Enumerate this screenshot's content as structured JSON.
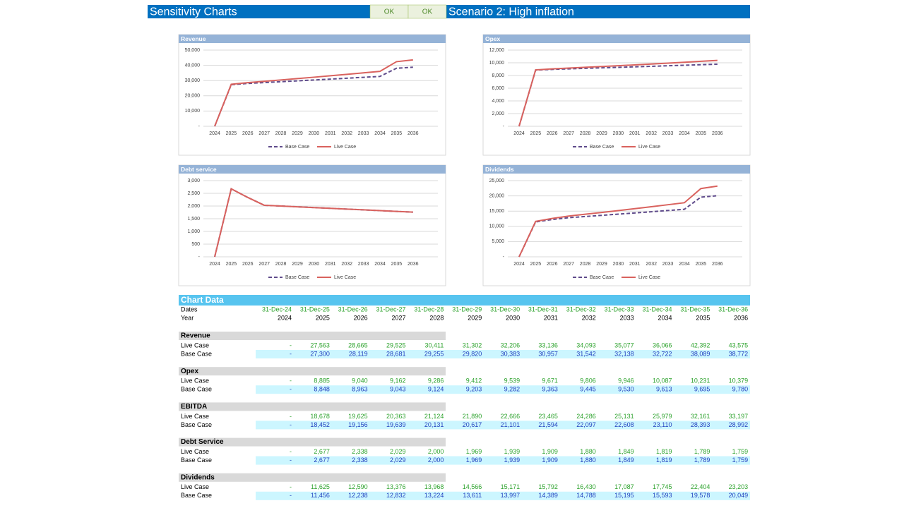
{
  "header": {
    "title": "Sensitivity Charts",
    "buttons": [
      "OK",
      "OK"
    ],
    "scenario": "Scenario 2: High inflation"
  },
  "chart_data": [
    {
      "type": "line",
      "title": "Revenue",
      "categories": [
        "2024",
        "2025",
        "2026",
        "2027",
        "2028",
        "2029",
        "2030",
        "2031",
        "2032",
        "2033",
        "2034",
        "2035",
        "2036"
      ],
      "series": [
        {
          "name": "Base Case",
          "color": "#5f4b8b",
          "style": "dashed",
          "values": [
            0,
            27300,
            28119,
            28681,
            29255,
            29820,
            30383,
            30957,
            31542,
            32138,
            32722,
            38089,
            38772
          ]
        },
        {
          "name": "Live Case",
          "color": "#d9625e",
          "style": "solid",
          "values": [
            0,
            27563,
            28665,
            29525,
            30411,
            31302,
            32206,
            33136,
            34093,
            35077,
            36066,
            42392,
            43575
          ]
        }
      ],
      "ylim": [
        0,
        50000
      ],
      "yticks": [
        {
          "value": 0,
          "label": "-"
        },
        {
          "value": 10000,
          "label": "10,000"
        },
        {
          "value": 20000,
          "label": "20,000"
        },
        {
          "value": 30000,
          "label": "30,000"
        },
        {
          "value": 40000,
          "label": "40,000"
        },
        {
          "value": 50000,
          "label": "50,000"
        }
      ],
      "grid": true
    },
    {
      "type": "line",
      "title": "Opex",
      "categories": [
        "2024",
        "2025",
        "2026",
        "2027",
        "2028",
        "2029",
        "2030",
        "2031",
        "2032",
        "2033",
        "2034",
        "2035",
        "2036"
      ],
      "series": [
        {
          "name": "Base Case",
          "color": "#5f4b8b",
          "style": "dashed",
          "values": [
            0,
            8848,
            8963,
            9043,
            9124,
            9203,
            9282,
            9363,
            9445,
            9530,
            9613,
            9695,
            9780
          ]
        },
        {
          "name": "Live Case",
          "color": "#d9625e",
          "style": "solid",
          "values": [
            0,
            8885,
            9040,
            9162,
            9286,
            9412,
            9539,
            9671,
            9806,
            9946,
            10087,
            10231,
            10379
          ]
        }
      ],
      "ylim": [
        0,
        12000
      ],
      "yticks": [
        {
          "value": 0,
          "label": "-"
        },
        {
          "value": 2000,
          "label": "2,000"
        },
        {
          "value": 4000,
          "label": "4,000"
        },
        {
          "value": 6000,
          "label": "6,000"
        },
        {
          "value": 8000,
          "label": "8,000"
        },
        {
          "value": 10000,
          "label": "10,000"
        },
        {
          "value": 12000,
          "label": "12,000"
        }
      ],
      "grid": true
    },
    {
      "type": "line",
      "title": "Debt service",
      "categories": [
        "2024",
        "2025",
        "2026",
        "2027",
        "2028",
        "2029",
        "2030",
        "2031",
        "2032",
        "2033",
        "2034",
        "2035",
        "2036"
      ],
      "series": [
        {
          "name": "Base Case",
          "color": "#5f4b8b",
          "style": "dashed",
          "values": [
            0,
            2677,
            2338,
            2029,
            2000,
            1969,
            1939,
            1909,
            1880,
            1849,
            1819,
            1789,
            1759
          ]
        },
        {
          "name": "Live Case",
          "color": "#d9625e",
          "style": "solid",
          "values": [
            0,
            2677,
            2338,
            2029,
            2000,
            1969,
            1939,
            1909,
            1880,
            1849,
            1819,
            1789,
            1759
          ]
        }
      ],
      "ylim": [
        0,
        3000
      ],
      "yticks": [
        {
          "value": 0,
          "label": "-"
        },
        500,
        {
          "value": 1000,
          "label": "1,000"
        },
        {
          "value": 1500,
          "label": "1,500"
        },
        {
          "value": 2000,
          "label": "2,000"
        },
        {
          "value": 2500,
          "label": "2,500"
        },
        {
          "value": 3000,
          "label": "3,000"
        }
      ],
      "grid": true
    },
    {
      "type": "line",
      "title": "Dividends",
      "categories": [
        "2024",
        "2025",
        "2026",
        "2027",
        "2028",
        "2029",
        "2030",
        "2031",
        "2032",
        "2033",
        "2034",
        "2035",
        "2036"
      ],
      "series": [
        {
          "name": "Base Case",
          "color": "#5f4b8b",
          "style": "dashed",
          "values": [
            0,
            11456,
            12238,
            12832,
            13224,
            13611,
            13997,
            14389,
            14788,
            15195,
            15593,
            19578,
            20049
          ]
        },
        {
          "name": "Live Case",
          "color": "#d9625e",
          "style": "solid",
          "values": [
            0,
            11625,
            12590,
            13376,
            13968,
            14566,
            15171,
            15792,
            16430,
            17087,
            17745,
            22404,
            23203
          ]
        }
      ],
      "ylim": [
        0,
        25000
      ],
      "yticks": [
        {
          "value": 0,
          "label": "-"
        },
        {
          "value": 5000,
          "label": "5,000"
        },
        {
          "value": 10000,
          "label": "10,000"
        },
        {
          "value": 15000,
          "label": "15,000"
        },
        {
          "value": 20000,
          "label": "20,000"
        },
        {
          "value": 25000,
          "label": "25,000"
        }
      ],
      "grid": true
    }
  ],
  "table": {
    "title": "Chart Data",
    "dates_label": "Dates",
    "dates": [
      "31-Dec-24",
      "31-Dec-25",
      "31-Dec-26",
      "31-Dec-27",
      "31-Dec-28",
      "31-Dec-29",
      "31-Dec-30",
      "31-Dec-31",
      "31-Dec-32",
      "31-Dec-33",
      "31-Dec-34",
      "31-Dec-35",
      "31-Dec-36"
    ],
    "year_label": "Year",
    "years": [
      2024,
      2025,
      2026,
      2027,
      2028,
      2029,
      2030,
      2031,
      2032,
      2033,
      2034,
      2035,
      2036
    ],
    "sections": [
      {
        "name": "Revenue",
        "rows": [
          {
            "label": "Live Case",
            "values": [
              "-",
              "27,563",
              "28,665",
              "29,525",
              "30,411",
              "31,302",
              "32,206",
              "33,136",
              "34,093",
              "35,077",
              "36,066",
              "42,392",
              "43,575"
            ]
          },
          {
            "label": "Base Case",
            "values": [
              "-",
              "27,300",
              "28,119",
              "28,681",
              "29,255",
              "29,820",
              "30,383",
              "30,957",
              "31,542",
              "32,138",
              "32,722",
              "38,089",
              "38,772"
            ]
          }
        ]
      },
      {
        "name": "Opex",
        "rows": [
          {
            "label": "Live Case",
            "values": [
              "-",
              "8,885",
              "9,040",
              "9,162",
              "9,286",
              "9,412",
              "9,539",
              "9,671",
              "9,806",
              "9,946",
              "10,087",
              "10,231",
              "10,379"
            ]
          },
          {
            "label": "Base Case",
            "values": [
              "-",
              "8,848",
              "8,963",
              "9,043",
              "9,124",
              "9,203",
              "9,282",
              "9,363",
              "9,445",
              "9,530",
              "9,613",
              "9,695",
              "9,780"
            ]
          }
        ]
      },
      {
        "name": "EBITDA",
        "rows": [
          {
            "label": "Live Case",
            "values": [
              "-",
              "18,678",
              "19,625",
              "20,363",
              "21,124",
              "21,890",
              "22,666",
              "23,465",
              "24,286",
              "25,131",
              "25,979",
              "32,161",
              "33,197"
            ]
          },
          {
            "label": "Base Case",
            "values": [
              "-",
              "18,452",
              "19,156",
              "19,639",
              "20,131",
              "20,617",
              "21,101",
              "21,594",
              "22,097",
              "22,608",
              "23,110",
              "28,393",
              "28,992"
            ]
          }
        ]
      },
      {
        "name": "Debt Service",
        "rows": [
          {
            "label": "Live Case",
            "values": [
              "-",
              "2,677",
              "2,338",
              "2,029",
              "2,000",
              "1,969",
              "1,939",
              "1,909",
              "1,880",
              "1,849",
              "1,819",
              "1,789",
              "1,759"
            ]
          },
          {
            "label": "Base Case",
            "values": [
              "-",
              "2,677",
              "2,338",
              "2,029",
              "2,000",
              "1,969",
              "1,939",
              "1,909",
              "1,880",
              "1,849",
              "1,819",
              "1,789",
              "1,759"
            ]
          }
        ]
      },
      {
        "name": "Dividends",
        "rows": [
          {
            "label": "Live Case",
            "values": [
              "-",
              "11,625",
              "12,590",
              "13,376",
              "13,968",
              "14,566",
              "15,171",
              "15,792",
              "16,430",
              "17,087",
              "17,745",
              "22,404",
              "23,203"
            ]
          },
          {
            "label": "Base Case",
            "values": [
              "-",
              "11,456",
              "12,238",
              "12,832",
              "13,224",
              "13,611",
              "13,997",
              "14,389",
              "14,788",
              "15,195",
              "15,593",
              "19,578",
              "20,049"
            ]
          }
        ]
      }
    ]
  }
}
